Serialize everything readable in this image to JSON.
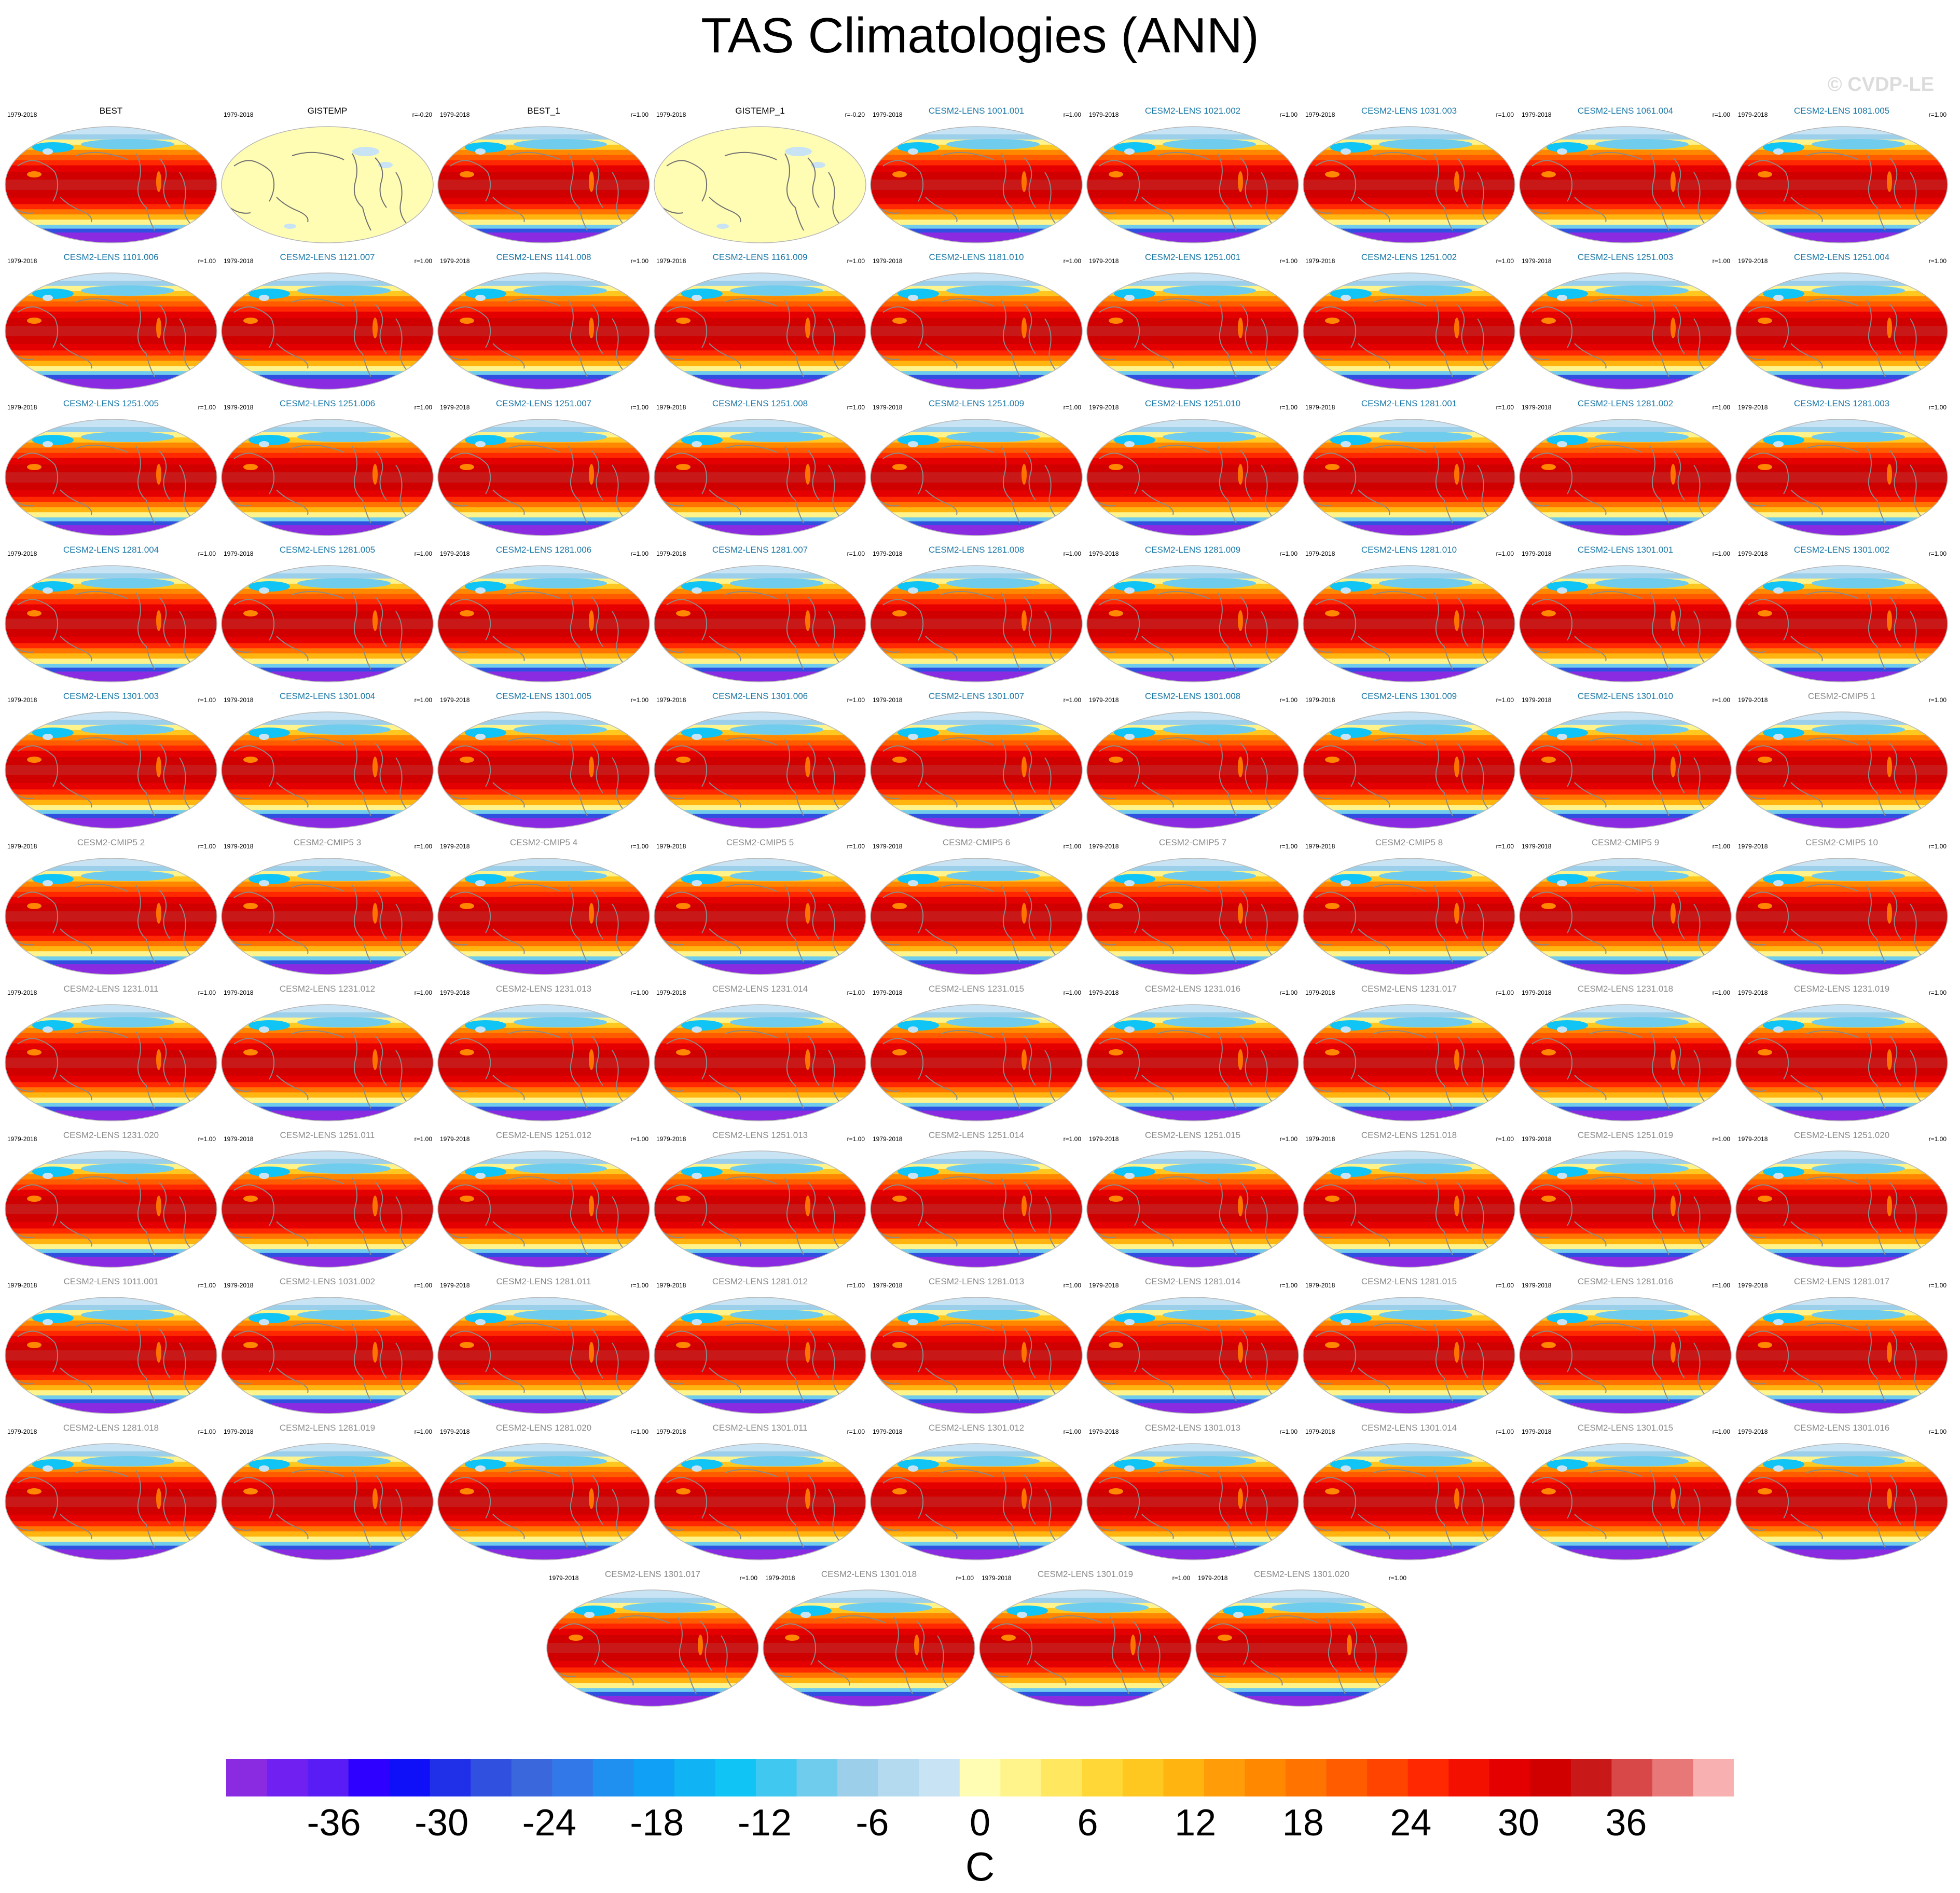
{
  "title": "TAS Climatologies (ANN)",
  "watermark": "© CVDP-LE",
  "chart_data": {
    "type": "heatmap",
    "title": "TAS Climatologies (ANN)",
    "period": "1979-2018",
    "colorbar": {
      "label": "C",
      "min": -42,
      "max": 42,
      "step": 2,
      "tick_labels": [
        "-36",
        "-30",
        "-24",
        "-18",
        "-12",
        "-6",
        "0",
        "6",
        "12",
        "18",
        "24",
        "30",
        "36"
      ],
      "tick_values": [
        -36,
        -30,
        -24,
        -18,
        -12,
        -6,
        0,
        6,
        12,
        18,
        24,
        30,
        36
      ],
      "colors": [
        "#8a2be2",
        "#7020f0",
        "#5a1cf5",
        "#2e00ff",
        "#1010f8",
        "#2030e8",
        "#3050e0",
        "#3a68dc",
        "#3278e8",
        "#2090f0",
        "#10a0f5",
        "#10b4f5",
        "#10c4f5",
        "#40c8f0",
        "#70ccec",
        "#9cd0ea",
        "#b4daf0",
        "#c8e4f4",
        "#fffcb4",
        "#fff48c",
        "#ffe860",
        "#ffd838",
        "#ffc820",
        "#ffb410",
        "#ff9c08",
        "#ff8800",
        "#ff7400",
        "#ff5c00",
        "#ff4400",
        "#ff2800",
        "#f41000",
        "#e40000",
        "#d00000",
        "#c81818",
        "#d84848",
        "#e87878",
        "#f8b0b0"
      ]
    },
    "panel_color_categories": {
      "observation": "#000000",
      "cesm2_lens": "#1a78a8",
      "cesm2_cmip5": "#8a8a8a"
    },
    "panels": [
      {
        "name": "BEST",
        "period": "1979-2018",
        "r": "",
        "kind": "observation",
        "field": "full"
      },
      {
        "name": "GISTEMP",
        "period": "1979-2018",
        "r": "r=-0.20",
        "kind": "observation",
        "field": "anomaly"
      },
      {
        "name": "BEST_1",
        "period": "1979-2018",
        "r": "r=1.00",
        "kind": "observation",
        "field": "full"
      },
      {
        "name": "GISTEMP_1",
        "period": "1979-2018",
        "r": "r=-0.20",
        "kind": "observation",
        "field": "anomaly"
      },
      {
        "name": "CESM2-LENS 1001.001",
        "period": "1979-2018",
        "r": "r=1.00",
        "kind": "cesm2_lens",
        "field": "full"
      },
      {
        "name": "CESM2-LENS 1021.002",
        "period": "1979-2018",
        "r": "r=1.00",
        "kind": "cesm2_lens",
        "field": "full"
      },
      {
        "name": "CESM2-LENS 1031.003",
        "period": "1979-2018",
        "r": "r=1.00",
        "kind": "cesm2_lens",
        "field": "full"
      },
      {
        "name": "CESM2-LENS 1061.004",
        "period": "1979-2018",
        "r": "r=1.00",
        "kind": "cesm2_lens",
        "field": "full"
      },
      {
        "name": "CESM2-LENS 1081.005",
        "period": "1979-2018",
        "r": "r=1.00",
        "kind": "cesm2_lens",
        "field": "full"
      },
      {
        "name": "CESM2-LENS 1101.006",
        "period": "1979-2018",
        "r": "r=1.00",
        "kind": "cesm2_lens",
        "field": "full"
      },
      {
        "name": "CESM2-LENS 1121.007",
        "period": "1979-2018",
        "r": "r=1.00",
        "kind": "cesm2_lens",
        "field": "full"
      },
      {
        "name": "CESM2-LENS 1141.008",
        "period": "1979-2018",
        "r": "r=1.00",
        "kind": "cesm2_lens",
        "field": "full"
      },
      {
        "name": "CESM2-LENS 1161.009",
        "period": "1979-2018",
        "r": "r=1.00",
        "kind": "cesm2_lens",
        "field": "full"
      },
      {
        "name": "CESM2-LENS 1181.010",
        "period": "1979-2018",
        "r": "r=1.00",
        "kind": "cesm2_lens",
        "field": "full"
      },
      {
        "name": "CESM2-LENS 1251.001",
        "period": "1979-2018",
        "r": "r=1.00",
        "kind": "cesm2_lens",
        "field": "full"
      },
      {
        "name": "CESM2-LENS 1251.002",
        "period": "1979-2018",
        "r": "r=1.00",
        "kind": "cesm2_lens",
        "field": "full"
      },
      {
        "name": "CESM2-LENS 1251.003",
        "period": "1979-2018",
        "r": "r=1.00",
        "kind": "cesm2_lens",
        "field": "full"
      },
      {
        "name": "CESM2-LENS 1251.004",
        "period": "1979-2018",
        "r": "r=1.00",
        "kind": "cesm2_lens",
        "field": "full"
      },
      {
        "name": "CESM2-LENS 1251.005",
        "period": "1979-2018",
        "r": "r=1.00",
        "kind": "cesm2_lens",
        "field": "full"
      },
      {
        "name": "CESM2-LENS 1251.006",
        "period": "1979-2018",
        "r": "r=1.00",
        "kind": "cesm2_lens",
        "field": "full"
      },
      {
        "name": "CESM2-LENS 1251.007",
        "period": "1979-2018",
        "r": "r=1.00",
        "kind": "cesm2_lens",
        "field": "full"
      },
      {
        "name": "CESM2-LENS 1251.008",
        "period": "1979-2018",
        "r": "r=1.00",
        "kind": "cesm2_lens",
        "field": "full"
      },
      {
        "name": "CESM2-LENS 1251.009",
        "period": "1979-2018",
        "r": "r=1.00",
        "kind": "cesm2_lens",
        "field": "full"
      },
      {
        "name": "CESM2-LENS 1251.010",
        "period": "1979-2018",
        "r": "r=1.00",
        "kind": "cesm2_lens",
        "field": "full"
      },
      {
        "name": "CESM2-LENS 1281.001",
        "period": "1979-2018",
        "r": "r=1.00",
        "kind": "cesm2_lens",
        "field": "full"
      },
      {
        "name": "CESM2-LENS 1281.002",
        "period": "1979-2018",
        "r": "r=1.00",
        "kind": "cesm2_lens",
        "field": "full"
      },
      {
        "name": "CESM2-LENS 1281.003",
        "period": "1979-2018",
        "r": "r=1.00",
        "kind": "cesm2_lens",
        "field": "full"
      },
      {
        "name": "CESM2-LENS 1281.004",
        "period": "1979-2018",
        "r": "r=1.00",
        "kind": "cesm2_lens",
        "field": "full"
      },
      {
        "name": "CESM2-LENS 1281.005",
        "period": "1979-2018",
        "r": "r=1.00",
        "kind": "cesm2_lens",
        "field": "full"
      },
      {
        "name": "CESM2-LENS 1281.006",
        "period": "1979-2018",
        "r": "r=1.00",
        "kind": "cesm2_lens",
        "field": "full"
      },
      {
        "name": "CESM2-LENS 1281.007",
        "period": "1979-2018",
        "r": "r=1.00",
        "kind": "cesm2_lens",
        "field": "full"
      },
      {
        "name": "CESM2-LENS 1281.008",
        "period": "1979-2018",
        "r": "r=1.00",
        "kind": "cesm2_lens",
        "field": "full"
      },
      {
        "name": "CESM2-LENS 1281.009",
        "period": "1979-2018",
        "r": "r=1.00",
        "kind": "cesm2_lens",
        "field": "full"
      },
      {
        "name": "CESM2-LENS 1281.010",
        "period": "1979-2018",
        "r": "r=1.00",
        "kind": "cesm2_lens",
        "field": "full"
      },
      {
        "name": "CESM2-LENS 1301.001",
        "period": "1979-2018",
        "r": "r=1.00",
        "kind": "cesm2_lens",
        "field": "full"
      },
      {
        "name": "CESM2-LENS 1301.002",
        "period": "1979-2018",
        "r": "r=1.00",
        "kind": "cesm2_lens",
        "field": "full"
      },
      {
        "name": "CESM2-LENS 1301.003",
        "period": "1979-2018",
        "r": "r=1.00",
        "kind": "cesm2_lens",
        "field": "full"
      },
      {
        "name": "CESM2-LENS 1301.004",
        "period": "1979-2018",
        "r": "r=1.00",
        "kind": "cesm2_lens",
        "field": "full"
      },
      {
        "name": "CESM2-LENS 1301.005",
        "period": "1979-2018",
        "r": "r=1.00",
        "kind": "cesm2_lens",
        "field": "full"
      },
      {
        "name": "CESM2-LENS 1301.006",
        "period": "1979-2018",
        "r": "r=1.00",
        "kind": "cesm2_lens",
        "field": "full"
      },
      {
        "name": "CESM2-LENS 1301.007",
        "period": "1979-2018",
        "r": "r=1.00",
        "kind": "cesm2_lens",
        "field": "full"
      },
      {
        "name": "CESM2-LENS 1301.008",
        "period": "1979-2018",
        "r": "r=1.00",
        "kind": "cesm2_lens",
        "field": "full"
      },
      {
        "name": "CESM2-LENS 1301.009",
        "period": "1979-2018",
        "r": "r=1.00",
        "kind": "cesm2_lens",
        "field": "full"
      },
      {
        "name": "CESM2-LENS 1301.010",
        "period": "1979-2018",
        "r": "r=1.00",
        "kind": "cesm2_lens",
        "field": "full"
      },
      {
        "name": "CESM2-CMIP5 1",
        "period": "1979-2018",
        "r": "r=1.00",
        "kind": "cesm2_cmip5",
        "field": "full"
      },
      {
        "name": "CESM2-CMIP5 2",
        "period": "1979-2018",
        "r": "r=1.00",
        "kind": "cesm2_cmip5",
        "field": "full"
      },
      {
        "name": "CESM2-CMIP5 3",
        "period": "1979-2018",
        "r": "r=1.00",
        "kind": "cesm2_cmip5",
        "field": "full"
      },
      {
        "name": "CESM2-CMIP5 4",
        "period": "1979-2018",
        "r": "r=1.00",
        "kind": "cesm2_cmip5",
        "field": "full"
      },
      {
        "name": "CESM2-CMIP5 5",
        "period": "1979-2018",
        "r": "r=1.00",
        "kind": "cesm2_cmip5",
        "field": "full"
      },
      {
        "name": "CESM2-CMIP5 6",
        "period": "1979-2018",
        "r": "r=1.00",
        "kind": "cesm2_cmip5",
        "field": "full"
      },
      {
        "name": "CESM2-CMIP5 7",
        "period": "1979-2018",
        "r": "r=1.00",
        "kind": "cesm2_cmip5",
        "field": "full"
      },
      {
        "name": "CESM2-CMIP5 8",
        "period": "1979-2018",
        "r": "r=1.00",
        "kind": "cesm2_cmip5",
        "field": "full"
      },
      {
        "name": "CESM2-CMIP5 9",
        "period": "1979-2018",
        "r": "r=1.00",
        "kind": "cesm2_cmip5",
        "field": "full"
      },
      {
        "name": "CESM2-CMIP5 10",
        "period": "1979-2018",
        "r": "r=1.00",
        "kind": "cesm2_cmip5",
        "field": "full"
      },
      {
        "name": "CESM2-LENS 1231.011",
        "period": "1979-2018",
        "r": "r=1.00",
        "kind": "cesm2_cmip5",
        "field": "full"
      },
      {
        "name": "CESM2-LENS 1231.012",
        "period": "1979-2018",
        "r": "r=1.00",
        "kind": "cesm2_cmip5",
        "field": "full"
      },
      {
        "name": "CESM2-LENS 1231.013",
        "period": "1979-2018",
        "r": "r=1.00",
        "kind": "cesm2_cmip5",
        "field": "full"
      },
      {
        "name": "CESM2-LENS 1231.014",
        "period": "1979-2018",
        "r": "r=1.00",
        "kind": "cesm2_cmip5",
        "field": "full"
      },
      {
        "name": "CESM2-LENS 1231.015",
        "period": "1979-2018",
        "r": "r=1.00",
        "kind": "cesm2_cmip5",
        "field": "full"
      },
      {
        "name": "CESM2-LENS 1231.016",
        "period": "1979-2018",
        "r": "r=1.00",
        "kind": "cesm2_cmip5",
        "field": "full"
      },
      {
        "name": "CESM2-LENS 1231.017",
        "period": "1979-2018",
        "r": "r=1.00",
        "kind": "cesm2_cmip5",
        "field": "full"
      },
      {
        "name": "CESM2-LENS 1231.018",
        "period": "1979-2018",
        "r": "r=1.00",
        "kind": "cesm2_cmip5",
        "field": "full"
      },
      {
        "name": "CESM2-LENS 1231.019",
        "period": "1979-2018",
        "r": "r=1.00",
        "kind": "cesm2_cmip5",
        "field": "full"
      },
      {
        "name": "CESM2-LENS 1231.020",
        "period": "1979-2018",
        "r": "r=1.00",
        "kind": "cesm2_cmip5",
        "field": "full"
      },
      {
        "name": "CESM2-LENS 1251.011",
        "period": "1979-2018",
        "r": "r=1.00",
        "kind": "cesm2_cmip5",
        "field": "full"
      },
      {
        "name": "CESM2-LENS 1251.012",
        "period": "1979-2018",
        "r": "r=1.00",
        "kind": "cesm2_cmip5",
        "field": "full"
      },
      {
        "name": "CESM2-LENS 1251.013",
        "period": "1979-2018",
        "r": "r=1.00",
        "kind": "cesm2_cmip5",
        "field": "full"
      },
      {
        "name": "CESM2-LENS 1251.014",
        "period": "1979-2018",
        "r": "r=1.00",
        "kind": "cesm2_cmip5",
        "field": "full"
      },
      {
        "name": "CESM2-LENS 1251.015",
        "period": "1979-2018",
        "r": "r=1.00",
        "kind": "cesm2_cmip5",
        "field": "full"
      },
      {
        "name": "CESM2-LENS 1251.018",
        "period": "1979-2018",
        "r": "r=1.00",
        "kind": "cesm2_cmip5",
        "field": "full"
      },
      {
        "name": "CESM2-LENS 1251.019",
        "period": "1979-2018",
        "r": "r=1.00",
        "kind": "cesm2_cmip5",
        "field": "full"
      },
      {
        "name": "CESM2-LENS 1251.020",
        "period": "1979-2018",
        "r": "r=1.00",
        "kind": "cesm2_cmip5",
        "field": "full"
      },
      {
        "name": "CESM2-LENS 1011.001",
        "period": "1979-2018",
        "r": "r=1.00",
        "kind": "cesm2_cmip5",
        "field": "full"
      },
      {
        "name": "CESM2-LENS 1031.002",
        "period": "1979-2018",
        "r": "r=1.00",
        "kind": "cesm2_cmip5",
        "field": "full"
      },
      {
        "name": "CESM2-LENS 1281.011",
        "period": "1979-2018",
        "r": "r=1.00",
        "kind": "cesm2_cmip5",
        "field": "full"
      },
      {
        "name": "CESM2-LENS 1281.012",
        "period": "1979-2018",
        "r": "r=1.00",
        "kind": "cesm2_cmip5",
        "field": "full"
      },
      {
        "name": "CESM2-LENS 1281.013",
        "period": "1979-2018",
        "r": "r=1.00",
        "kind": "cesm2_cmip5",
        "field": "full"
      },
      {
        "name": "CESM2-LENS 1281.014",
        "period": "1979-2018",
        "r": "r=1.00",
        "kind": "cesm2_cmip5",
        "field": "full"
      },
      {
        "name": "CESM2-LENS 1281.015",
        "period": "1979-2018",
        "r": "r=1.00",
        "kind": "cesm2_cmip5",
        "field": "full"
      },
      {
        "name": "CESM2-LENS 1281.016",
        "period": "1979-2018",
        "r": "r=1.00",
        "kind": "cesm2_cmip5",
        "field": "full"
      },
      {
        "name": "CESM2-LENS 1281.017",
        "period": "1979-2018",
        "r": "r=1.00",
        "kind": "cesm2_cmip5",
        "field": "full"
      },
      {
        "name": "CESM2-LENS 1281.018",
        "period": "1979-2018",
        "r": "r=1.00",
        "kind": "cesm2_cmip5",
        "field": "full"
      },
      {
        "name": "CESM2-LENS 1281.019",
        "period": "1979-2018",
        "r": "r=1.00",
        "kind": "cesm2_cmip5",
        "field": "full"
      },
      {
        "name": "CESM2-LENS 1281.020",
        "period": "1979-2018",
        "r": "r=1.00",
        "kind": "cesm2_cmip5",
        "field": "full"
      },
      {
        "name": "CESM2-LENS 1301.011",
        "period": "1979-2018",
        "r": "r=1.00",
        "kind": "cesm2_cmip5",
        "field": "full"
      },
      {
        "name": "CESM2-LENS 1301.012",
        "period": "1979-2018",
        "r": "r=1.00",
        "kind": "cesm2_cmip5",
        "field": "full"
      },
      {
        "name": "CESM2-LENS 1301.013",
        "period": "1979-2018",
        "r": "r=1.00",
        "kind": "cesm2_cmip5",
        "field": "full"
      },
      {
        "name": "CESM2-LENS 1301.014",
        "period": "1979-2018",
        "r": "r=1.00",
        "kind": "cesm2_cmip5",
        "field": "full"
      },
      {
        "name": "CESM2-LENS 1301.015",
        "period": "1979-2018",
        "r": "r=1.00",
        "kind": "cesm2_cmip5",
        "field": "full"
      },
      {
        "name": "CESM2-LENS 1301.016",
        "period": "1979-2018",
        "r": "r=1.00",
        "kind": "cesm2_cmip5",
        "field": "full"
      },
      {
        "name": "CESM2-LENS 1301.017",
        "period": "1979-2018",
        "r": "r=1.00",
        "kind": "cesm2_cmip5",
        "field": "full"
      },
      {
        "name": "CESM2-LENS 1301.018",
        "period": "1979-2018",
        "r": "r=1.00",
        "kind": "cesm2_cmip5",
        "field": "full"
      },
      {
        "name": "CESM2-LENS 1301.019",
        "period": "1979-2018",
        "r": "r=1.00",
        "kind": "cesm2_cmip5",
        "field": "full"
      },
      {
        "name": "CESM2-LENS 1301.020",
        "period": "1979-2018",
        "r": "r=1.00",
        "kind": "cesm2_cmip5",
        "field": "full"
      }
    ]
  }
}
